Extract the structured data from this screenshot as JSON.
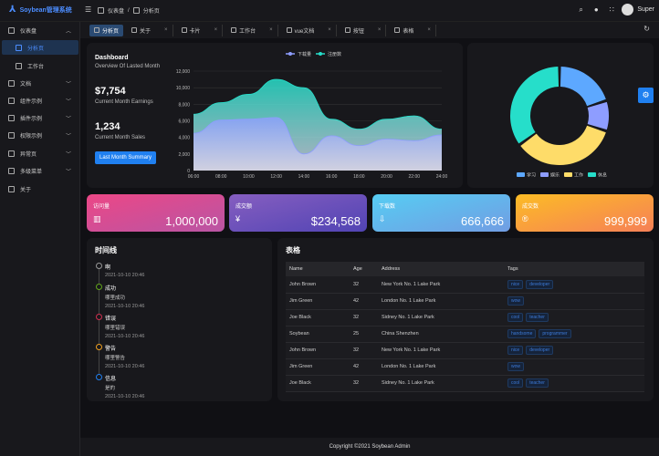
{
  "header": {
    "app_title": "Soybean管理系统",
    "breadcrumb": [
      "仪表盘",
      "分析页"
    ],
    "user_name": "Super",
    "icons": [
      "search-icon",
      "github-icon",
      "layout-icon",
      "moon-icon"
    ]
  },
  "tabs": [
    {
      "label": "分析页",
      "active": true
    },
    {
      "label": "关于"
    },
    {
      "label": "卡片"
    },
    {
      "label": "工作台"
    },
    {
      "label": "vue文档"
    },
    {
      "label": "按钮"
    },
    {
      "label": "表格"
    }
  ],
  "sidebar": {
    "items": [
      {
        "label": "仪表盘",
        "expanded": true
      },
      {
        "label": "分析页",
        "active": true
      },
      {
        "label": "工作台"
      },
      {
        "label": "文档"
      },
      {
        "label": "组件示例"
      },
      {
        "label": "插件示例"
      },
      {
        "label": "权限示例"
      },
      {
        "label": "异常页"
      },
      {
        "label": "多级菜单"
      },
      {
        "label": "关于"
      }
    ]
  },
  "overview": {
    "title": "Dashboard",
    "subtitle": "Overview Of Lasted Month",
    "earnings": "$7,754",
    "earnings_label": "Current Month Earnings",
    "sales": "1,234",
    "sales_label": "Current Month Sales",
    "button": "Last Month Summary"
  },
  "chart_data": [
    {
      "type": "area",
      "x": [
        "06:00",
        "08:00",
        "10:00",
        "12:00",
        "14:00",
        "16:00",
        "18:00",
        "20:00",
        "22:00",
        "24:00"
      ],
      "ylim": [
        0,
        12000
      ],
      "yticks": [
        "0",
        "2,000",
        "4,000",
        "6,000",
        "8,000",
        "10,000",
        "12,000"
      ],
      "grid": true,
      "legend": "top",
      "series": [
        {
          "name": "下载量",
          "color": "#8e9dff",
          "values": [
            4500,
            6100,
            6200,
            6400,
            2000,
            4200,
            3000,
            3800,
            3600,
            4300
          ]
        },
        {
          "name": "注册数",
          "color": "#26deca",
          "values": [
            6800,
            8200,
            9200,
            11000,
            10000,
            6200,
            5000,
            6200,
            6600,
            5000
          ]
        }
      ]
    },
    {
      "type": "pie",
      "categories": [
        "学习",
        "娱乐",
        "工作",
        "休息"
      ],
      "values": [
        20,
        10,
        35,
        35
      ],
      "colors": [
        "#5da8ff",
        "#8e9dff",
        "#fedc69",
        "#26deca"
      ],
      "legend": "bottom"
    }
  ],
  "stats": [
    {
      "title": "访问量",
      "value": "1,000,000",
      "icon": "bar-chart-icon",
      "from": "#ec4786",
      "to": "#b955a4"
    },
    {
      "title": "成交额",
      "value": "$234,568",
      "icon": "money-icon",
      "from": "#865ec0",
      "to": "#5144b4"
    },
    {
      "title": "下载数",
      "value": "666,666",
      "icon": "download-icon",
      "from": "#56cdf3",
      "to": "#719de3"
    },
    {
      "title": "成交数",
      "value": "999,999",
      "icon": "trademark-icon",
      "from": "#fcbc25",
      "to": "#f68057"
    }
  ],
  "timeline": {
    "title": "时间线",
    "items": [
      {
        "title": "啊",
        "content": "",
        "time": "2021-10-10 20:46",
        "color": "#999999"
      },
      {
        "title": "成功",
        "content": "哪里成功",
        "time": "2021-10-10 20:46",
        "color": "#63a61b"
      },
      {
        "title": "错误",
        "content": "哪里错误",
        "time": "2021-10-10 20:46",
        "color": "#d03050"
      },
      {
        "title": "警告",
        "content": "哪里警告",
        "time": "2021-10-10 20:46",
        "color": "#f0a020"
      },
      {
        "title": "信息",
        "content": "是的",
        "time": "2021-10-10 20:46",
        "color": "#2080f0"
      }
    ]
  },
  "table": {
    "title": "表格",
    "columns": [
      "Name",
      "Age",
      "Address",
      "Tags"
    ],
    "rows": [
      {
        "name": "John Brown",
        "age": "32",
        "address": "New York No. 1 Lake Park",
        "tags": [
          "nice",
          "developer"
        ]
      },
      {
        "name": "Jim Green",
        "age": "42",
        "address": "London No. 1 Lake Park",
        "tags": [
          "wow"
        ]
      },
      {
        "name": "Joe Black",
        "age": "32",
        "address": "Sidney No. 1 Lake Park",
        "tags": [
          "cool",
          "teacher"
        ]
      },
      {
        "name": "Soybean",
        "age": "25",
        "address": "China Shenzhen",
        "tags": [
          "handsome",
          "programmer"
        ]
      },
      {
        "name": "John Brown",
        "age": "32",
        "address": "New York No. 1 Lake Park",
        "tags": [
          "nice",
          "developer"
        ]
      },
      {
        "name": "Jim Green",
        "age": "42",
        "address": "London No. 1 Lake Park",
        "tags": [
          "wow"
        ]
      },
      {
        "name": "Joe Black",
        "age": "32",
        "address": "Sidney No. 1 Lake Park",
        "tags": [
          "cool",
          "teacher"
        ]
      }
    ]
  },
  "footer": {
    "copyright": "Copyright ©2021 Soybean Admin"
  }
}
